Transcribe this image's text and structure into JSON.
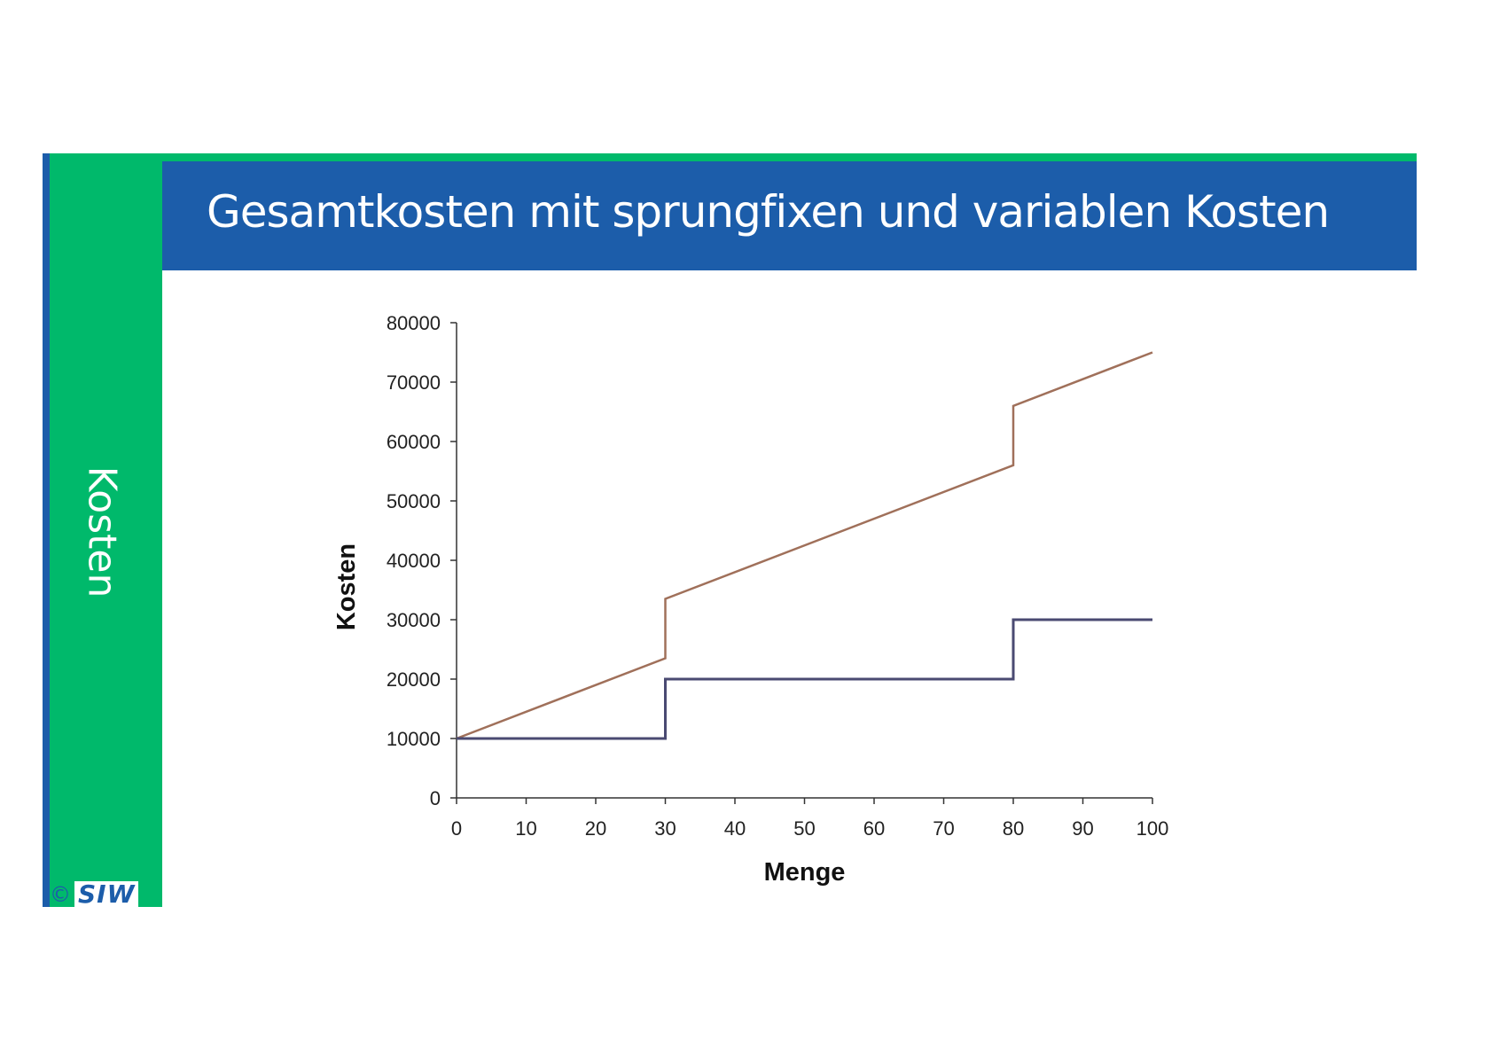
{
  "slide": {
    "title": "Gesamtkosten mit sprungfixen und variablen Kosten",
    "side_label": "Kosten",
    "logo_copyright": "©",
    "logo_text": "SIW",
    "colors": {
      "green": "#00b96b",
      "blue": "#1c5daa"
    }
  },
  "chart_data": {
    "type": "line",
    "xlabel": "Menge",
    "ylabel": "Kosten",
    "xlim": [
      0,
      100
    ],
    "ylim": [
      0,
      80000
    ],
    "x_ticks": [
      0,
      10,
      20,
      30,
      40,
      50,
      60,
      70,
      80,
      90,
      100
    ],
    "y_ticks": [
      0,
      10000,
      20000,
      30000,
      40000,
      50000,
      60000,
      70000,
      80000
    ],
    "grid": false,
    "legend": "none",
    "series": [
      {
        "color": "#a0705a",
        "points": [
          [
            0,
            10000
          ],
          [
            30,
            23500
          ],
          [
            30,
            33500
          ],
          [
            80,
            56000
          ],
          [
            80,
            66000
          ],
          [
            100,
            75000
          ]
        ]
      },
      {
        "color": "#4a4a72",
        "points": [
          [
            0,
            10000
          ],
          [
            30,
            10000
          ],
          [
            30,
            20000
          ],
          [
            80,
            20000
          ],
          [
            80,
            30000
          ],
          [
            100,
            30000
          ]
        ]
      }
    ]
  }
}
